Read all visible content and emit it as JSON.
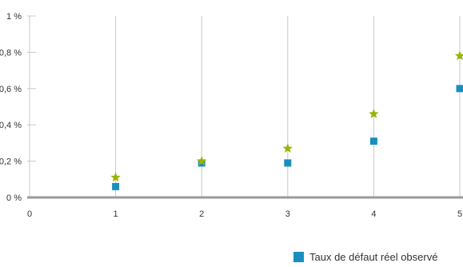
{
  "chart_data": {
    "type": "scatter",
    "xlim": [
      0,
      5
    ],
    "ylim": [
      0,
      1
    ],
    "x_ticks": [
      "0",
      "1",
      "2",
      "3",
      "4",
      "5"
    ],
    "y_ticks": [
      "0 %",
      "0,2 %",
      "0,4 %",
      "0,6 %",
      "0,8 %",
      "1 %"
    ],
    "grid": "vertical",
    "series": [
      {
        "name": "Taux de défaut réel observé",
        "marker": "square",
        "color": "#1a8fbd",
        "points": [
          {
            "x": 1,
            "y": 0.06
          },
          {
            "x": 2,
            "y": 0.19
          },
          {
            "x": 3,
            "y": 0.19
          },
          {
            "x": 4,
            "y": 0.31
          },
          {
            "x": 5,
            "y": 0.6
          }
        ]
      },
      {
        "marker": "star",
        "color": "#9cb300",
        "points": [
          {
            "x": 1,
            "y": 0.11
          },
          {
            "x": 2,
            "y": 0.2
          },
          {
            "x": 3,
            "y": 0.27
          },
          {
            "x": 4,
            "y": 0.46
          },
          {
            "x": 5,
            "y": 0.78
          }
        ]
      }
    ],
    "legend": {
      "position": "bottom-right"
    }
  }
}
